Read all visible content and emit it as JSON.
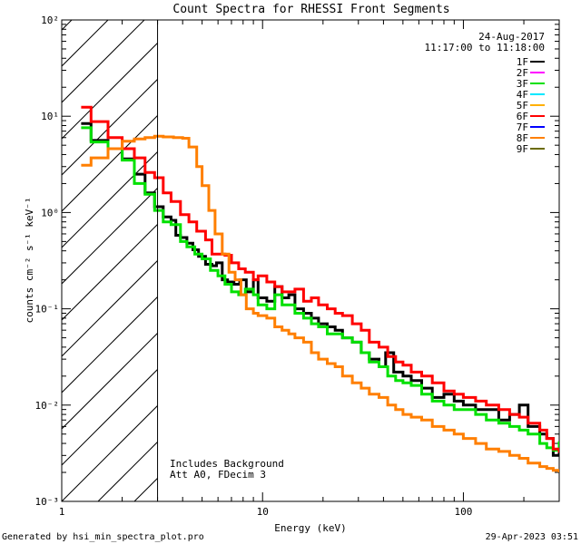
{
  "chart_data": {
    "type": "line",
    "title": "Count Spectra for RHESSI Front Segments",
    "xlabel": "Energy (keV)",
    "ylabel": "counts cm⁻² s⁻¹ keV⁻¹",
    "xscale": "log",
    "yscale": "log",
    "xlim": [
      1,
      300
    ],
    "ylim": [
      0.001,
      100
    ],
    "x_ticks": [
      1,
      10,
      100
    ],
    "x_tick_labels": [
      "1",
      "10",
      "100"
    ],
    "y_ticks": [
      0.001,
      0.01,
      0.1,
      1,
      10,
      100
    ],
    "y_tick_labels": [
      "10⁻³",
      "10⁻²",
      "10⁻¹",
      "10⁰",
      "10¹",
      "10²"
    ],
    "date": "24-Aug-2017",
    "time_range": "11:17:00 to 11:18:00",
    "hatched_region_end_kev": 3,
    "annotations": [
      "Includes Background",
      "Att A0, FDecim 3"
    ],
    "legend": [
      {
        "name": "1F",
        "color": "#000000"
      },
      {
        "name": "2F",
        "color": "#ff00ff"
      },
      {
        "name": "3F",
        "color": "#00e000"
      },
      {
        "name": "4F",
        "color": "#00e8ff"
      },
      {
        "name": "5F",
        "color": "#ffb000"
      },
      {
        "name": "6F",
        "color": "#ff0000"
      },
      {
        "name": "7F",
        "color": "#0000ff"
      },
      {
        "name": "8F",
        "color": "#ff7f00"
      },
      {
        "name": "9F",
        "color": "#6b6b00"
      }
    ],
    "series": [
      {
        "name": "1F",
        "color": "#000000",
        "points": [
          [
            1.25,
            8.4
          ],
          [
            1.4,
            5.6
          ],
          [
            1.7,
            4.6
          ],
          [
            2.0,
            3.6
          ],
          [
            2.3,
            2.5
          ],
          [
            2.6,
            1.6
          ],
          [
            2.9,
            1.15
          ],
          [
            3.2,
            0.9
          ],
          [
            3.5,
            0.83
          ],
          [
            3.7,
            0.58
          ],
          [
            3.9,
            0.55
          ],
          [
            4.2,
            0.48
          ],
          [
            4.5,
            0.41
          ],
          [
            4.8,
            0.35
          ],
          [
            5.2,
            0.29
          ],
          [
            5.6,
            0.28
          ],
          [
            5.9,
            0.3
          ],
          [
            6.3,
            0.2
          ],
          [
            6.7,
            0.19
          ],
          [
            7.2,
            0.18
          ],
          [
            7.7,
            0.2
          ],
          [
            8.3,
            0.15
          ],
          [
            9,
            0.2
          ],
          [
            9.5,
            0.13
          ],
          [
            10.5,
            0.12
          ],
          [
            11.5,
            0.17
          ],
          [
            12.5,
            0.13
          ],
          [
            13.5,
            0.14
          ],
          [
            14.5,
            0.1
          ],
          [
            16,
            0.09
          ],
          [
            17.5,
            0.08
          ],
          [
            19,
            0.07
          ],
          [
            21,
            0.065
          ],
          [
            23,
            0.06
          ],
          [
            25,
            0.05
          ],
          [
            28,
            0.045
          ],
          [
            31,
            0.035
          ],
          [
            34,
            0.03
          ],
          [
            38,
            0.025
          ],
          [
            41,
            0.035
          ],
          [
            45,
            0.022
          ],
          [
            50,
            0.02
          ],
          [
            55,
            0.018
          ],
          [
            62,
            0.015
          ],
          [
            70,
            0.012
          ],
          [
            80,
            0.013
          ],
          [
            90,
            0.011
          ],
          [
            100,
            0.01
          ],
          [
            115,
            0.009
          ],
          [
            130,
            0.009
          ],
          [
            150,
            0.007
          ],
          [
            170,
            0.008
          ],
          [
            190,
            0.01
          ],
          [
            210,
            0.006
          ],
          [
            240,
            0.005
          ],
          [
            260,
            0.0045
          ],
          [
            280,
            0.003
          ],
          [
            300,
            0.0038
          ]
        ]
      },
      {
        "name": "3F",
        "color": "#00e000",
        "points": [
          [
            1.25,
            7.6
          ],
          [
            1.4,
            5.4
          ],
          [
            1.7,
            4.6
          ],
          [
            2.0,
            3.5
          ],
          [
            2.3,
            2.0
          ],
          [
            2.6,
            1.55
          ],
          [
            2.9,
            1.05
          ],
          [
            3.2,
            0.8
          ],
          [
            3.5,
            0.75
          ],
          [
            3.9,
            0.5
          ],
          [
            4.2,
            0.44
          ],
          [
            4.6,
            0.37
          ],
          [
            5.0,
            0.33
          ],
          [
            5.5,
            0.25
          ],
          [
            6.0,
            0.22
          ],
          [
            6.5,
            0.18
          ],
          [
            7.0,
            0.15
          ],
          [
            7.6,
            0.14
          ],
          [
            8.2,
            0.16
          ],
          [
            9,
            0.14
          ],
          [
            9.5,
            0.11
          ],
          [
            10.5,
            0.1
          ],
          [
            11.5,
            0.14
          ],
          [
            12.5,
            0.11
          ],
          [
            13.5,
            0.11
          ],
          [
            14.5,
            0.09
          ],
          [
            16,
            0.08
          ],
          [
            17.5,
            0.07
          ],
          [
            19,
            0.065
          ],
          [
            21,
            0.055
          ],
          [
            23,
            0.055
          ],
          [
            25,
            0.05
          ],
          [
            28,
            0.045
          ],
          [
            31,
            0.035
          ],
          [
            34,
            0.028
          ],
          [
            38,
            0.025
          ],
          [
            42,
            0.02
          ],
          [
            46,
            0.018
          ],
          [
            50,
            0.017
          ],
          [
            55,
            0.016
          ],
          [
            62,
            0.013
          ],
          [
            70,
            0.011
          ],
          [
            80,
            0.01
          ],
          [
            90,
            0.009
          ],
          [
            100,
            0.009
          ],
          [
            115,
            0.008
          ],
          [
            130,
            0.007
          ],
          [
            150,
            0.0065
          ],
          [
            170,
            0.006
          ],
          [
            190,
            0.0055
          ],
          [
            210,
            0.005
          ],
          [
            240,
            0.004
          ],
          [
            260,
            0.0036
          ],
          [
            280,
            0.0034
          ],
          [
            300,
            0.0042
          ]
        ]
      },
      {
        "name": "6F",
        "color": "#ff0000",
        "points": [
          [
            1.25,
            12.4
          ],
          [
            1.4,
            8.8
          ],
          [
            1.7,
            6.0
          ],
          [
            2.0,
            4.6
          ],
          [
            2.3,
            3.7
          ],
          [
            2.6,
            2.6
          ],
          [
            2.9,
            2.3
          ],
          [
            3.2,
            1.6
          ],
          [
            3.5,
            1.3
          ],
          [
            3.9,
            0.95
          ],
          [
            4.3,
            0.8
          ],
          [
            4.7,
            0.64
          ],
          [
            5.2,
            0.52
          ],
          [
            5.6,
            0.37
          ],
          [
            6.0,
            0.37
          ],
          [
            6.5,
            0.36
          ],
          [
            7.0,
            0.3
          ],
          [
            7.6,
            0.26
          ],
          [
            8.2,
            0.24
          ],
          [
            9,
            0.2
          ],
          [
            9.5,
            0.22
          ],
          [
            10.5,
            0.19
          ],
          [
            11.5,
            0.17
          ],
          [
            12.5,
            0.15
          ],
          [
            13.5,
            0.15
          ],
          [
            14.5,
            0.16
          ],
          [
            16,
            0.12
          ],
          [
            17.5,
            0.13
          ],
          [
            19,
            0.11
          ],
          [
            21,
            0.1
          ],
          [
            23,
            0.09
          ],
          [
            25,
            0.085
          ],
          [
            28,
            0.07
          ],
          [
            31,
            0.06
          ],
          [
            34,
            0.045
          ],
          [
            38,
            0.04
          ],
          [
            42,
            0.032
          ],
          [
            46,
            0.028
          ],
          [
            50,
            0.026
          ],
          [
            55,
            0.022
          ],
          [
            62,
            0.02
          ],
          [
            70,
            0.017
          ],
          [
            80,
            0.014
          ],
          [
            90,
            0.013
          ],
          [
            100,
            0.012
          ],
          [
            115,
            0.011
          ],
          [
            130,
            0.01
          ],
          [
            150,
            0.009
          ],
          [
            170,
            0.008
          ],
          [
            190,
            0.0075
          ],
          [
            210,
            0.0065
          ],
          [
            240,
            0.0055
          ],
          [
            260,
            0.0045
          ],
          [
            280,
            0.0035
          ],
          [
            300,
            0.0032
          ]
        ]
      },
      {
        "name": "8F",
        "color": "#ff7f00",
        "points": [
          [
            1.25,
            3.1
          ],
          [
            1.4,
            3.7
          ],
          [
            1.7,
            4.6
          ],
          [
            2.0,
            5.5
          ],
          [
            2.3,
            5.8
          ],
          [
            2.6,
            6.0
          ],
          [
            2.9,
            6.2
          ],
          [
            3.2,
            6.1
          ],
          [
            3.6,
            6.0
          ],
          [
            4.0,
            5.9
          ],
          [
            4.3,
            4.8
          ],
          [
            4.7,
            3.0
          ],
          [
            5.0,
            1.9
          ],
          [
            5.4,
            1.05
          ],
          [
            5.8,
            0.6
          ],
          [
            6.3,
            0.37
          ],
          [
            6.8,
            0.24
          ],
          [
            7.3,
            0.2
          ],
          [
            7.8,
            0.14
          ],
          [
            8.3,
            0.1
          ],
          [
            9,
            0.09
          ],
          [
            9.5,
            0.085
          ],
          [
            10.5,
            0.08
          ],
          [
            11.5,
            0.065
          ],
          [
            12.5,
            0.06
          ],
          [
            13.5,
            0.055
          ],
          [
            14.5,
            0.05
          ],
          [
            16,
            0.045
          ],
          [
            17.5,
            0.035
          ],
          [
            19,
            0.03
          ],
          [
            21,
            0.027
          ],
          [
            23,
            0.025
          ],
          [
            25,
            0.02
          ],
          [
            28,
            0.017
          ],
          [
            31,
            0.015
          ],
          [
            34,
            0.013
          ],
          [
            38,
            0.012
          ],
          [
            42,
            0.01
          ],
          [
            46,
            0.009
          ],
          [
            50,
            0.008
          ],
          [
            55,
            0.0075
          ],
          [
            62,
            0.007
          ],
          [
            70,
            0.006
          ],
          [
            80,
            0.0055
          ],
          [
            90,
            0.005
          ],
          [
            100,
            0.0045
          ],
          [
            115,
            0.004
          ],
          [
            130,
            0.0035
          ],
          [
            150,
            0.0033
          ],
          [
            170,
            0.003
          ],
          [
            190,
            0.0028
          ],
          [
            210,
            0.0025
          ],
          [
            240,
            0.0023
          ],
          [
            260,
            0.0022
          ],
          [
            280,
            0.0021
          ],
          [
            300,
            0.002
          ]
        ]
      }
    ]
  },
  "footer": {
    "generated_by": "Generated by hsi_min_spectra_plot.pro",
    "timestamp": "29-Apr-2023 03:51"
  }
}
